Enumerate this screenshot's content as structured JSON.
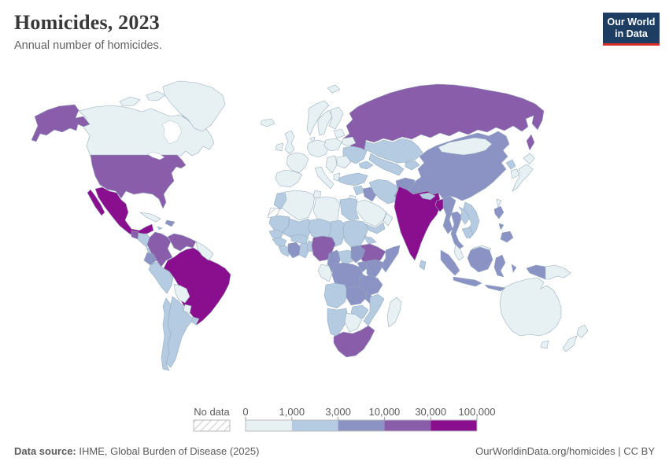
{
  "header": {
    "title": "Homicides, 2023",
    "subtitle": "Annual number of homicides.",
    "logo": {
      "line1": "Our World",
      "line2": "in Data",
      "bg": "#1d3d63",
      "accent": "#dc2e27"
    }
  },
  "footer": {
    "source_label": "Data source:",
    "source_text": " IHME, Global Burden of Disease (2025)",
    "right_text": "OurWorldinData.org/homicides | CC BY"
  },
  "legend": {
    "no_data_label": "No data",
    "tick_labels": [
      "0",
      "1,000",
      "3,000",
      "10,000",
      "30,000",
      "100,000"
    ],
    "bin_colors": [
      "#e7f1f4",
      "#b4cbe2",
      "#8b93c4",
      "#8a5dab",
      "#8a0f8f"
    ],
    "no_data_fill": "#ffffff",
    "hatch_color": "#cfcfcf",
    "border_color": "#b9b9b9",
    "text_color": "#5a5a5a"
  },
  "chart_data": {
    "type": "heatmap",
    "subtype": "choropleth_world_map",
    "title": "Homicides, 2023",
    "ylabel": "Annual number of homicides",
    "bins": [
      {
        "label": "0–1,000",
        "min": 0,
        "max": 1000,
        "color": "#e7f1f4"
      },
      {
        "label": "1,000–3,000",
        "min": 1000,
        "max": 3000,
        "color": "#b4cbe2"
      },
      {
        "label": "3,000–10,000",
        "min": 3000,
        "max": 10000,
        "color": "#8b93c4"
      },
      {
        "label": "10,000–30,000",
        "min": 10000,
        "max": 30000,
        "color": "#8a5dab"
      },
      {
        "label": "30,000–100,000",
        "min": 30000,
        "max": 100000,
        "color": "#8a0f8f"
      }
    ],
    "no_data_label": "No data",
    "countries": [
      {
        "id": "russia",
        "name": "Russia",
        "bin": 3
      },
      {
        "id": "canada",
        "name": "Canada",
        "bin": 0
      },
      {
        "id": "greenland",
        "name": "Greenland",
        "bin": 0
      },
      {
        "id": "china",
        "name": "China",
        "bin": 2
      },
      {
        "id": "mongolia",
        "name": "Mongolia",
        "bin": 0
      },
      {
        "id": "usa",
        "name": "United States",
        "bin": 3
      },
      {
        "id": "brazil",
        "name": "Brazil",
        "bin": 4
      },
      {
        "id": "australia",
        "name": "Australia",
        "bin": 0
      },
      {
        "id": "mexico",
        "name": "Mexico",
        "bin": 4
      },
      {
        "id": "guatemala",
        "name": "Guatemala",
        "bin": 3
      },
      {
        "id": "honduras-nicaragua",
        "name": "Honduras & Nicaragua",
        "bin": 1
      },
      {
        "id": "costa-rica-panama",
        "name": "Costa Rica & Panama",
        "bin": 1
      },
      {
        "id": "cuba",
        "name": "Cuba",
        "bin": 0
      },
      {
        "id": "hispaniola",
        "name": "Haiti & Dominican Republic",
        "bin": 2
      },
      {
        "id": "jamaica",
        "name": "Jamaica",
        "bin": 1
      },
      {
        "id": "colombia",
        "name": "Colombia",
        "bin": 3
      },
      {
        "id": "venezuela",
        "name": "Venezuela",
        "bin": 3
      },
      {
        "id": "guyanas",
        "name": "Guyana & Suriname",
        "bin": 0
      },
      {
        "id": "ecuador",
        "name": "Ecuador",
        "bin": 2
      },
      {
        "id": "peru",
        "name": "Peru",
        "bin": 1
      },
      {
        "id": "bolivia",
        "name": "Bolivia",
        "bin": 0
      },
      {
        "id": "paraguay",
        "name": "Paraguay",
        "bin": 0
      },
      {
        "id": "uruguay",
        "name": "Uruguay",
        "bin": 1
      },
      {
        "id": "argentina",
        "name": "Argentina",
        "bin": 1
      },
      {
        "id": "chile",
        "name": "Chile",
        "bin": 1
      },
      {
        "id": "iceland",
        "name": "Iceland",
        "bin": 0
      },
      {
        "id": "united-kingdom",
        "name": "United Kingdom",
        "bin": 0
      },
      {
        "id": "ireland",
        "name": "Ireland",
        "bin": 0
      },
      {
        "id": "norway",
        "name": "Norway",
        "bin": 0
      },
      {
        "id": "sweden",
        "name": "Sweden",
        "bin": 0
      },
      {
        "id": "finland",
        "name": "Finland",
        "bin": 0
      },
      {
        "id": "denmark",
        "name": "Denmark",
        "bin": 0
      },
      {
        "id": "france",
        "name": "France",
        "bin": 0
      },
      {
        "id": "iberia",
        "name": "Spain & Portugal",
        "bin": 0
      },
      {
        "id": "central-europe",
        "name": "Germany & Central Europe",
        "bin": 0
      },
      {
        "id": "italy",
        "name": "Italy",
        "bin": 0
      },
      {
        "id": "poland",
        "name": "Poland",
        "bin": 0
      },
      {
        "id": "baltics",
        "name": "Baltic States",
        "bin": 0
      },
      {
        "id": "belarus",
        "name": "Belarus",
        "bin": 0
      },
      {
        "id": "ukraine",
        "name": "Ukraine",
        "bin": 1
      },
      {
        "id": "romania-bulgaria",
        "name": "Romania & Bulgaria",
        "bin": 0
      },
      {
        "id": "balkans",
        "name": "Balkans",
        "bin": 0
      },
      {
        "id": "greece",
        "name": "Greece",
        "bin": 0
      },
      {
        "id": "svalbard",
        "name": "Svalbard",
        "bin": 0
      },
      {
        "id": "kazakhstan",
        "name": "Kazakhstan",
        "bin": 1
      },
      {
        "id": "uzbekistan-turkmenistan",
        "name": "Uzbekistan & Turkmenistan",
        "bin": 1
      },
      {
        "id": "kyrgyzstan-tajikistan",
        "name": "Kyrgyzstan & Tajikistan",
        "bin": 1
      },
      {
        "id": "caucasus",
        "name": "Caucasus",
        "bin": 1
      },
      {
        "id": "turkey",
        "name": "Turkey",
        "bin": 1
      },
      {
        "id": "syria",
        "name": "Syria",
        "bin": 1
      },
      {
        "id": "israel-jordan",
        "name": "Israel & Jordan",
        "bin": 0
      },
      {
        "id": "iraq",
        "name": "Iraq",
        "bin": 2
      },
      {
        "id": "saudi-arabia",
        "name": "Saudi Arabia",
        "bin": 0
      },
      {
        "id": "yemen",
        "name": "Yemen",
        "bin": 1
      },
      {
        "id": "oman",
        "name": "Oman",
        "bin": 0
      },
      {
        "id": "iran",
        "name": "Iran",
        "bin": 1
      },
      {
        "id": "afghanistan",
        "name": "Afghanistan",
        "bin": 2
      },
      {
        "id": "pakistan",
        "name": "Pakistan",
        "bin": 2
      },
      {
        "id": "india",
        "name": "India",
        "bin": 4
      },
      {
        "id": "nepal",
        "name": "Nepal",
        "bin": 1
      },
      {
        "id": "bangladesh",
        "name": "Bangladesh",
        "bin": 4
      },
      {
        "id": "sri-lanka",
        "name": "Sri Lanka",
        "bin": 1
      },
      {
        "id": "myanmar",
        "name": "Myanmar",
        "bin": 2
      },
      {
        "id": "thailand",
        "name": "Thailand",
        "bin": 2
      },
      {
        "id": "laos",
        "name": "Laos",
        "bin": 1
      },
      {
        "id": "vietnam",
        "name": "Vietnam",
        "bin": 1
      },
      {
        "id": "cambodia",
        "name": "Cambodia",
        "bin": 1
      },
      {
        "id": "malaysia",
        "name": "Malaysia",
        "bin": 0
      },
      {
        "id": "indonesia",
        "name": "Indonesia",
        "bin": 2
      },
      {
        "id": "papua-new-guinea",
        "name": "Papua New Guinea",
        "bin": 0
      },
      {
        "id": "philippines",
        "name": "Philippines",
        "bin": 2
      },
      {
        "id": "north-korea",
        "name": "North Korea",
        "bin": 1
      },
      {
        "id": "south-korea",
        "name": "South Korea",
        "bin": 0
      },
      {
        "id": "japan",
        "name": "Japan",
        "bin": 0
      },
      {
        "id": "taiwan",
        "name": "Taiwan",
        "bin": 0
      },
      {
        "id": "new-zealand",
        "name": "New Zealand",
        "bin": 0
      },
      {
        "id": "morocco",
        "name": "Morocco",
        "bin": 1
      },
      {
        "id": "western-sahara",
        "name": "Western Sahara",
        "bin": null
      },
      {
        "id": "algeria",
        "name": "Algeria",
        "bin": 0
      },
      {
        "id": "tunisia",
        "name": "Tunisia",
        "bin": 0
      },
      {
        "id": "libya",
        "name": "Libya",
        "bin": 0
      },
      {
        "id": "egypt",
        "name": "Egypt",
        "bin": 1
      },
      {
        "id": "mauritania",
        "name": "Mauritania",
        "bin": 1
      },
      {
        "id": "mali",
        "name": "Mali",
        "bin": 1
      },
      {
        "id": "niger",
        "name": "Niger",
        "bin": 1
      },
      {
        "id": "chad",
        "name": "Chad",
        "bin": 1
      },
      {
        "id": "sudan",
        "name": "Sudan",
        "bin": 1
      },
      {
        "id": "eritrea",
        "name": "Eritrea",
        "bin": 1
      },
      {
        "id": "ethiopia",
        "name": "Ethiopia",
        "bin": 3
      },
      {
        "id": "somalia",
        "name": "Somalia",
        "bin": 2
      },
      {
        "id": "senegal",
        "name": "Senegal",
        "bin": 1
      },
      {
        "id": "guinea",
        "name": "Guinea",
        "bin": 1
      },
      {
        "id": "sierra-leone-liberia",
        "name": "Sierra Leone & Liberia",
        "bin": 1
      },
      {
        "id": "cote-divoire",
        "name": "Côte d'Ivoire",
        "bin": 2
      },
      {
        "id": "ghana",
        "name": "Ghana",
        "bin": 1
      },
      {
        "id": "burkina-faso",
        "name": "Burkina Faso",
        "bin": 1
      },
      {
        "id": "benin-togo",
        "name": "Benin & Togo",
        "bin": 1
      },
      {
        "id": "nigeria",
        "name": "Nigeria",
        "bin": 3
      },
      {
        "id": "cameroon",
        "name": "Cameroon",
        "bin": 2
      },
      {
        "id": "central-african-republic",
        "name": "Central African Republic",
        "bin": 1
      },
      {
        "id": "south-sudan",
        "name": "South Sudan",
        "bin": 2
      },
      {
        "id": "congo-gabon",
        "name": "Congo & Gabon",
        "bin": 0
      },
      {
        "id": "drc",
        "name": "Democratic Republic of Congo",
        "bin": 2
      },
      {
        "id": "uganda",
        "name": "Uganda",
        "bin": 2
      },
      {
        "id": "kenya",
        "name": "Kenya",
        "bin": 2
      },
      {
        "id": "rwanda-burundi",
        "name": "Rwanda & Burundi",
        "bin": 2
      },
      {
        "id": "tanzania",
        "name": "Tanzania",
        "bin": 2
      },
      {
        "id": "angola",
        "name": "Angola",
        "bin": 1
      },
      {
        "id": "zambia",
        "name": "Zambia",
        "bin": 2
      },
      {
        "id": "malawi",
        "name": "Malawi",
        "bin": 2
      },
      {
        "id": "mozambique",
        "name": "Mozambique",
        "bin": 1
      },
      {
        "id": "zimbabwe",
        "name": "Zimbabwe",
        "bin": 1
      },
      {
        "id": "namibia",
        "name": "Namibia",
        "bin": 1
      },
      {
        "id": "botswana",
        "name": "Botswana",
        "bin": 0
      },
      {
        "id": "south-africa",
        "name": "South Africa",
        "bin": 3
      },
      {
        "id": "madagascar",
        "name": "Madagascar",
        "bin": 0
      }
    ]
  }
}
